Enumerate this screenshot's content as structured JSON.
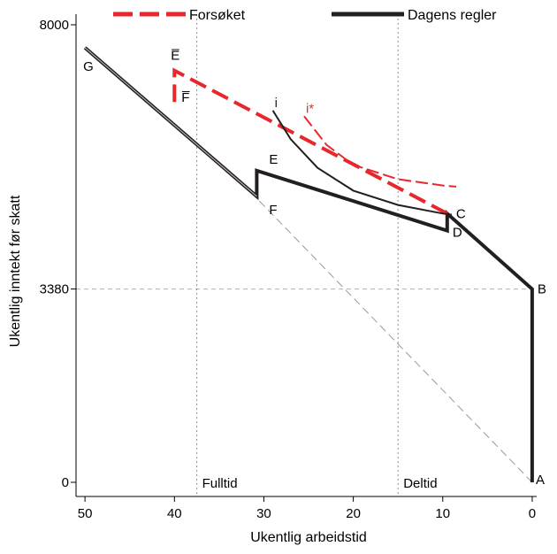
{
  "chart_data": {
    "type": "line",
    "xlabel": "Ukentlig arbeidstid",
    "ylabel": "Ukentlig inntekt før skatt",
    "x_reversed": true,
    "xlim": [
      51,
      -0.5
    ],
    "ylim": [
      0,
      8000
    ],
    "x_ticks": [
      50,
      40,
      30,
      20,
      10,
      0
    ],
    "y_ticks": [
      0,
      3380,
      8000
    ],
    "y_tick_labels": [
      "0",
      "3380",
      "8000"
    ],
    "vertical_reference_lines": [
      {
        "x": 37.5,
        "label": "Fulltid",
        "color": "#909090"
      },
      {
        "x": 15,
        "label": "Deltid",
        "color": "#909090"
      }
    ],
    "horizontal_reference_lines": [
      {
        "y": 3380,
        "color": "#b0b0b0"
      }
    ],
    "legend": {
      "placement": "top",
      "entries": [
        {
          "label": "Forsøket",
          "color": "#e8272d",
          "style": "dashed"
        },
        {
          "label": "Dagens regler",
          "color": "#231f20",
          "style": "solid"
        }
      ]
    },
    "series": [
      {
        "name": "Dagens regler",
        "color": "#231f20",
        "style": "solid",
        "points": [
          [
            0,
            0
          ],
          [
            0,
            3380
          ],
          [
            9.5,
            4700
          ],
          [
            9.5,
            4400
          ],
          [
            30.8,
            5450
          ],
          [
            30.8,
            5000
          ],
          [
            50,
            7600
          ]
        ]
      },
      {
        "name": "Forsøket",
        "color": "#e8272d",
        "style": "dashed",
        "points": [
          [
            9.5,
            4700
          ],
          [
            40,
            7200
          ],
          [
            40,
            6650
          ]
        ]
      }
    ],
    "reference_line": {
      "color": "#999999",
      "style": "dashed",
      "points": [
        [
          0,
          0
        ],
        [
          31,
          5000
        ]
      ]
    },
    "indifference_curves": [
      {
        "label": "i",
        "color": "#231f20",
        "style": "solid",
        "points": [
          [
            29,
            6500
          ],
          [
            27,
            6000
          ],
          [
            24,
            5500
          ],
          [
            20,
            5100
          ],
          [
            15,
            4850
          ],
          [
            10,
            4700
          ],
          [
            9,
            4680
          ]
        ]
      },
      {
        "label": "i*",
        "color": "#e8272d",
        "style": "dashed",
        "points": [
          [
            25.5,
            6400
          ],
          [
            23,
            5900
          ],
          [
            20,
            5550
          ],
          [
            15,
            5300
          ],
          [
            10,
            5190
          ],
          [
            8.5,
            5170
          ]
        ]
      }
    ],
    "point_labels": [
      {
        "label": "A",
        "x": 0,
        "y": 0
      },
      {
        "label": "B",
        "x": 0,
        "y": 3380
      },
      {
        "label": "C",
        "x": 9.5,
        "y": 4700
      },
      {
        "label": "D",
        "x": 9.5,
        "y": 4400
      },
      {
        "label": "E",
        "x": 30.8,
        "y": 5450
      },
      {
        "label": "F",
        "x": 30.8,
        "y": 5000
      },
      {
        "label": "G",
        "x": 50,
        "y": 7600
      },
      {
        "label": "E̅",
        "x": 40,
        "y": 7200
      },
      {
        "label": "F̅",
        "x": 40,
        "y": 6650
      }
    ]
  }
}
